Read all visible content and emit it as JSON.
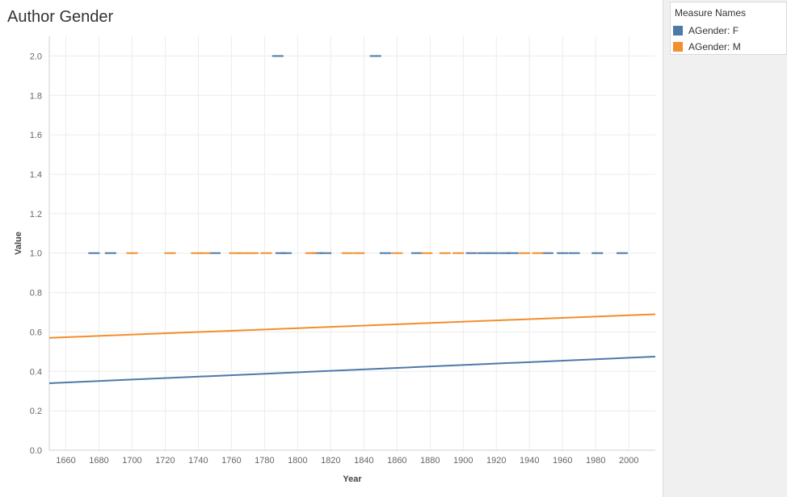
{
  "colors": {
    "female": "#4e79a7",
    "male": "#f28e2b",
    "grid": "#ececec",
    "axis": "#d0d0d0"
  },
  "legend": {
    "title": "Measure Names",
    "items": [
      {
        "label": "AGender: F",
        "color": "#4e79a7"
      },
      {
        "label": "AGender: M",
        "color": "#f28e2b"
      }
    ]
  },
  "chart_data": {
    "type": "scatter",
    "title": "Author Gender",
    "xlabel": "Year",
    "ylabel": "Value",
    "xlim": [
      1650,
      2016
    ],
    "ylim": [
      0,
      2.1
    ],
    "x_ticks": [
      1660,
      1680,
      1700,
      1720,
      1740,
      1760,
      1780,
      1800,
      1820,
      1840,
      1860,
      1880,
      1900,
      1920,
      1940,
      1960,
      1980,
      2000
    ],
    "y_ticks": [
      0.0,
      0.2,
      0.4,
      0.6,
      0.8,
      1.0,
      1.2,
      1.4,
      1.6,
      1.8,
      2.0
    ],
    "grid": true,
    "legend_position": "top-right",
    "series": [
      {
        "name": "AGender: F",
        "color": "#4e79a7",
        "points": [
          {
            "x": 1677,
            "y": 1
          },
          {
            "x": 1687,
            "y": 1
          },
          {
            "x": 1750,
            "y": 1
          },
          {
            "x": 1788,
            "y": 2
          },
          {
            "x": 1790,
            "y": 1
          },
          {
            "x": 1793,
            "y": 1
          },
          {
            "x": 1812,
            "y": 1
          },
          {
            "x": 1817,
            "y": 1
          },
          {
            "x": 1847,
            "y": 2
          },
          {
            "x": 1853,
            "y": 1
          },
          {
            "x": 1872,
            "y": 1
          },
          {
            "x": 1905,
            "y": 1
          },
          {
            "x": 1912,
            "y": 1
          },
          {
            "x": 1918,
            "y": 1
          },
          {
            "x": 1925,
            "y": 1
          },
          {
            "x": 1930,
            "y": 1
          },
          {
            "x": 1951,
            "y": 1
          },
          {
            "x": 1960,
            "y": 1
          },
          {
            "x": 1967,
            "y": 1
          },
          {
            "x": 1981,
            "y": 1
          },
          {
            "x": 1996,
            "y": 1
          }
        ],
        "trend": {
          "x": [
            1650,
            2016
          ],
          "y": [
            0.34,
            0.475
          ]
        }
      },
      {
        "name": "AGender: M",
        "color": "#f28e2b",
        "points": [
          {
            "x": 1700,
            "y": 1
          },
          {
            "x": 1723,
            "y": 1
          },
          {
            "x": 1739,
            "y": 1
          },
          {
            "x": 1744,
            "y": 1
          },
          {
            "x": 1762,
            "y": 1
          },
          {
            "x": 1767,
            "y": 1
          },
          {
            "x": 1773,
            "y": 1
          },
          {
            "x": 1781,
            "y": 1
          },
          {
            "x": 1808,
            "y": 1
          },
          {
            "x": 1830,
            "y": 1
          },
          {
            "x": 1837,
            "y": 1
          },
          {
            "x": 1860,
            "y": 1
          },
          {
            "x": 1878,
            "y": 1
          },
          {
            "x": 1889,
            "y": 1
          },
          {
            "x": 1897,
            "y": 1
          },
          {
            "x": 1937,
            "y": 1
          },
          {
            "x": 1945,
            "y": 1
          }
        ],
        "trend": {
          "x": [
            1650,
            2016
          ],
          "y": [
            0.57,
            0.69
          ]
        }
      }
    ]
  }
}
